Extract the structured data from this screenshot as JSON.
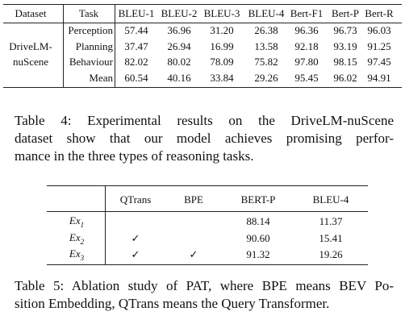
{
  "table4": {
    "header": [
      "Dataset",
      "Task",
      "BLEU-1",
      "BLEU-2",
      "BLEU-3",
      "BLEU-4",
      "Bert-F1",
      "Bert-P",
      "Bert-R"
    ],
    "rows": [
      [
        null,
        "Perception",
        "57.44",
        "36.96",
        "31.20",
        "26.38",
        "96.36",
        "96.73",
        "96.03"
      ],
      [
        "DriveLM-",
        "Planning",
        "37.47",
        "26.94",
        "16.99",
        "13.58",
        "92.18",
        "93.19",
        "91.25"
      ],
      [
        "nuScene",
        "Behaviour",
        "82.02",
        "80.02",
        "78.09",
        "75.82",
        "97.80",
        "98.15",
        "97.45"
      ],
      [
        null,
        "Mean",
        "60.54",
        "40.16",
        "33.84",
        "29.26",
        "95.45",
        "96.02",
        "94.91"
      ]
    ],
    "caption": [
      "Table 4:  Experimental results on the DriveLM-nuScene",
      "dataset show that our model achieves promising perfor-",
      "mance in the three types of reasoning tasks."
    ]
  },
  "table5": {
    "header": [
      null,
      "QTrans",
      "BPE",
      "BERT-P",
      "BLEU-4"
    ],
    "rows": [
      [
        {
          "name": "Ex",
          "sub": "1"
        },
        null,
        null,
        "88.14",
        "11.37"
      ],
      [
        {
          "name": "Ex",
          "sub": "2"
        },
        "✓",
        null,
        "90.60",
        "15.41"
      ],
      [
        {
          "name": "Ex",
          "sub": "3"
        },
        "✓",
        "✓",
        "91.32",
        "19.26"
      ]
    ],
    "caption": [
      "Table 5: Ablation study of PAT, where BPE means BEV Po-",
      "sition Embedding, QTrans means the Query Transformer."
    ]
  }
}
